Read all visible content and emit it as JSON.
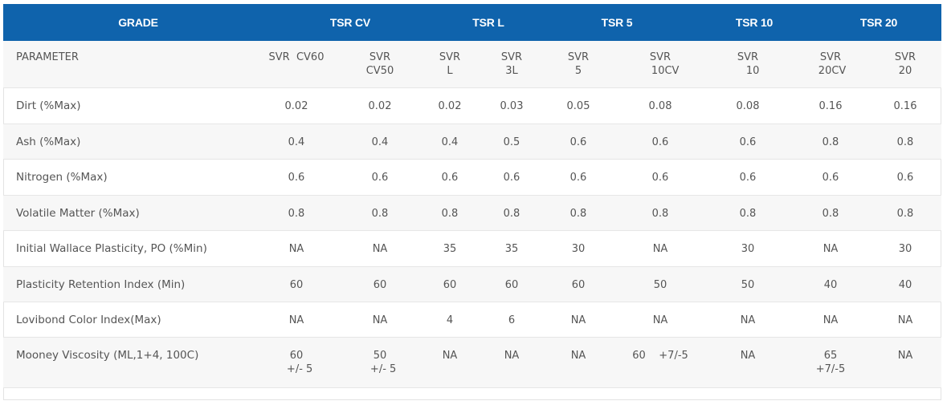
{
  "header": {
    "grade_label": "GRADE",
    "groups": [
      "TSR CV",
      "TSR L",
      "TSR 5",
      "TSR 10",
      "TSR 20"
    ]
  },
  "subheader": {
    "parameter_label": "PARAMETER",
    "columns": [
      [
        "SVR  CV60"
      ],
      [
        "SVR",
        "CV50"
      ],
      [
        "SVR",
        "L"
      ],
      [
        "SVR",
        "3L"
      ],
      [
        "SVR",
        "5"
      ],
      [
        "SVR",
        "   10CV"
      ],
      [
        "SVR",
        "   10"
      ],
      [
        "SVR",
        " 20CV"
      ],
      [
        "SVR",
        "20"
      ]
    ]
  },
  "rows": [
    {
      "parameter": "Dirt (%Max)",
      "values": [
        [
          "0.02"
        ],
        [
          "0.02"
        ],
        [
          "0.02"
        ],
        [
          "0.03"
        ],
        [
          "0.05"
        ],
        [
          "0.08"
        ],
        [
          "0.08"
        ],
        [
          "0.16"
        ],
        [
          "0.16"
        ]
      ]
    },
    {
      "parameter": "Ash (%Max)",
      "values": [
        [
          "0.4"
        ],
        [
          "0.4"
        ],
        [
          "0.4"
        ],
        [
          "0.5"
        ],
        [
          "0.6"
        ],
        [
          "0.6"
        ],
        [
          "0.6"
        ],
        [
          "0.8"
        ],
        [
          "0.8"
        ]
      ]
    },
    {
      "parameter": "Nitrogen (%Max)",
      "values": [
        [
          "0.6"
        ],
        [
          "0.6"
        ],
        [
          "0.6"
        ],
        [
          "0.6"
        ],
        [
          "0.6"
        ],
        [
          "0.6"
        ],
        [
          "0.6"
        ],
        [
          "0.6"
        ],
        [
          "0.6"
        ]
      ]
    },
    {
      "parameter": "Volatile Matter (%Max)",
      "values": [
        [
          "0.8"
        ],
        [
          "0.8"
        ],
        [
          "0.8"
        ],
        [
          "0.8"
        ],
        [
          "0.8"
        ],
        [
          "0.8"
        ],
        [
          "0.8"
        ],
        [
          "0.8"
        ],
        [
          "0.8"
        ]
      ]
    },
    {
      "parameter": "Initial Wallace Plasticity, PO (%Min)",
      "values": [
        [
          "NA"
        ],
        [
          "NA"
        ],
        [
          "35"
        ],
        [
          "35"
        ],
        [
          "30"
        ],
        [
          "NA"
        ],
        [
          "30"
        ],
        [
          "NA"
        ],
        [
          "30"
        ]
      ]
    },
    {
      "parameter": "Plasticity Retention Index  (Min)",
      "values": [
        [
          "60"
        ],
        [
          "60"
        ],
        [
          "60"
        ],
        [
          "60"
        ],
        [
          "60"
        ],
        [
          "50"
        ],
        [
          "50"
        ],
        [
          "40"
        ],
        [
          "40"
        ]
      ]
    },
    {
      "parameter": "Lovibond Color Index(Max)",
      "values": [
        [
          "NA"
        ],
        [
          "NA"
        ],
        [
          "4"
        ],
        [
          "6"
        ],
        [
          "NA"
        ],
        [
          "NA"
        ],
        [
          "NA"
        ],
        [
          "NA"
        ],
        [
          "NA"
        ]
      ]
    },
    {
      "parameter": "Mooney Viscosity (ML,1+4, 100C)",
      "values": [
        [
          "60",
          "  +/- 5"
        ],
        [
          "50",
          "  +/- 5"
        ],
        [
          "NA"
        ],
        [
          "NA"
        ],
        [
          "NA"
        ],
        [
          "60    +7/-5"
        ],
        [
          "NA"
        ],
        [
          "65",
          "+7/-5"
        ],
        [
          "NA"
        ]
      ]
    }
  ],
  "colors": {
    "header_bg": "#0f63ac",
    "header_text": "#ffffff",
    "alt_row_bg": "#f7f7f7",
    "border": "#e6e6e6"
  }
}
